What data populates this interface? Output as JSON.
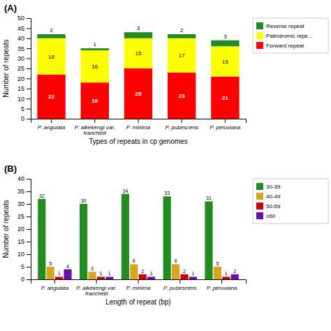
{
  "chart_data": [
    {
      "type": "bar",
      "title": "(A)",
      "stacked": true,
      "data_labels": true,
      "legend": "right",
      "xlabel": "Types of repeats in cp genomes",
      "ylabel": "Number of repeats",
      "categories": [
        "P. angulata",
        "P. alkekengi var.\nfranchetii",
        "P. minima",
        "P. pubescens",
        "P. peruviana"
      ],
      "series": [
        {
          "name": "Forward repeat",
          "color": "#FF0000",
          "values": [
            22,
            18,
            25,
            23,
            21
          ]
        },
        {
          "name": "Palindromic repe...",
          "color": "#FFFF00",
          "values": [
            18,
            16,
            15,
            17,
            15
          ]
        },
        {
          "name": "Reverse repeat",
          "color": "#228B22",
          "values": [
            2,
            1,
            3,
            2,
            3
          ]
        }
      ],
      "ylim": [
        0,
        50
      ],
      "yticks": [
        0,
        5,
        10,
        15,
        20,
        25,
        30,
        35,
        40,
        45,
        50
      ]
    },
    {
      "type": "bar",
      "title": "(B)",
      "stacked": false,
      "data_labels": true,
      "legend": "right",
      "xlabel": "Length of repeat (bp)",
      "ylabel": "Number of repeats",
      "categories": [
        "P. angulata",
        "P. alkekengi var.\nfranchetii",
        "P. minima",
        "P. pubescens",
        "P. peruviana"
      ],
      "series": [
        {
          "name": "30-39",
          "color": "#228B22",
          "values": [
            32,
            30,
            34,
            33,
            31
          ]
        },
        {
          "name": "40-49",
          "color": "#DAA520",
          "values": [
            5,
            3,
            6,
            6,
            5
          ]
        },
        {
          "name": "50-59",
          "color": "#CC0000",
          "values": [
            1,
            1,
            2,
            2,
            1
          ]
        },
        {
          "name": "≥60",
          "color": "#6A0DAD",
          "values": [
            4,
            1,
            1,
            1,
            2
          ]
        }
      ],
      "ylim": [
        0,
        40
      ],
      "yticks": [
        0,
        5,
        10,
        15,
        20,
        25,
        30,
        35,
        40
      ]
    }
  ]
}
